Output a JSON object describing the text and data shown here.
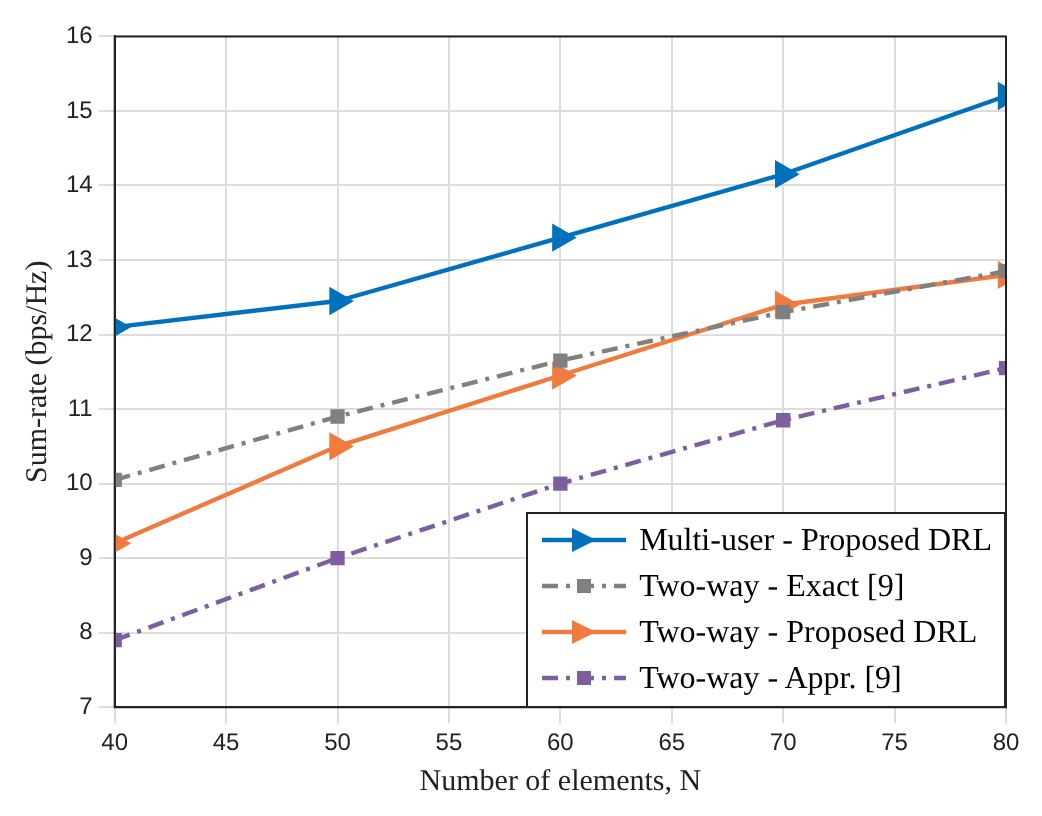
{
  "chart_data": {
    "type": "line",
    "xlabel": "Number of elements, N",
    "ylabel": "Sum-rate (bps/Hz)",
    "x": [
      40,
      50,
      60,
      70,
      80
    ],
    "xlim": [
      40,
      80
    ],
    "xticks": [
      40,
      45,
      50,
      55,
      60,
      65,
      70,
      75,
      80
    ],
    "ylim": [
      7,
      16
    ],
    "yticks": [
      7,
      8,
      9,
      10,
      11,
      12,
      13,
      14,
      15,
      16
    ],
    "grid": true,
    "legend": "bottom right",
    "series": [
      {
        "name": "Multi-user - Proposed DRL",
        "color": "#0072bd",
        "marker": "triangle",
        "line_style": "solid",
        "values": [
          12.1,
          12.45,
          13.3,
          14.15,
          15.2
        ]
      },
      {
        "name": "Two-way - Exact [9]",
        "color": "#808080",
        "marker": "square",
        "line_style": "dashed",
        "values": [
          10.05,
          10.9,
          11.65,
          12.3,
          12.85
        ]
      },
      {
        "name": "Two-way - Proposed DRL",
        "color": "#f07b3f",
        "marker": "triangle",
        "line_style": "solid",
        "values": [
          9.2,
          10.5,
          11.45,
          12.4,
          12.8
        ]
      },
      {
        "name": "Two-way - Appr. [9]",
        "color": "#7e5ea0",
        "marker": "square",
        "line_style": "dashed",
        "values": [
          7.9,
          9.0,
          10.0,
          10.85,
          11.55
        ]
      }
    ]
  }
}
